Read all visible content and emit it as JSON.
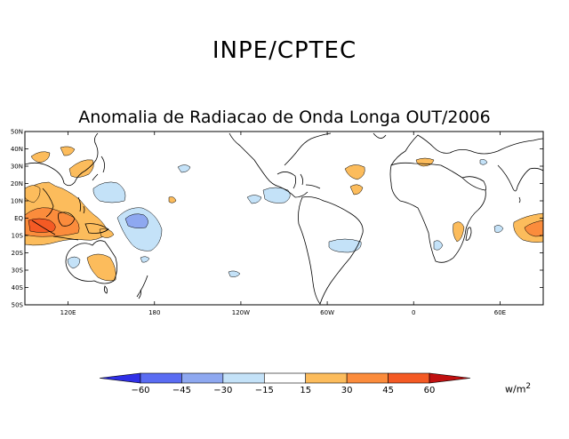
{
  "header": {
    "agency": "INPE/CPTEC",
    "title": "Anomalia de Radiacao de Onda Longa OUT/2006"
  },
  "map": {
    "lat_labels": [
      "50N",
      "40N",
      "30N",
      "20N",
      "10N",
      "EQ",
      "10S",
      "20S",
      "30S",
      "40S",
      "50S"
    ],
    "lon_labels": [
      "120E",
      "180",
      "120W",
      "60W",
      "0",
      "60E"
    ],
    "lat_range": [
      -50,
      50
    ],
    "lon_range_deg_east": [
      90,
      450
    ]
  },
  "colorbar": {
    "levels": [
      "-60",
      "-45",
      "-30",
      "-15",
      "15",
      "30",
      "45",
      "60"
    ],
    "colors": [
      "#2f2fe6",
      "#5a6cf2",
      "#8ea8f0",
      "#c4e2f8",
      "#ffffff",
      "#fcbc5c",
      "#fb8c3c",
      "#f45a24",
      "#c01010"
    ],
    "unit_base": "w/m",
    "unit_exp": "2"
  }
}
